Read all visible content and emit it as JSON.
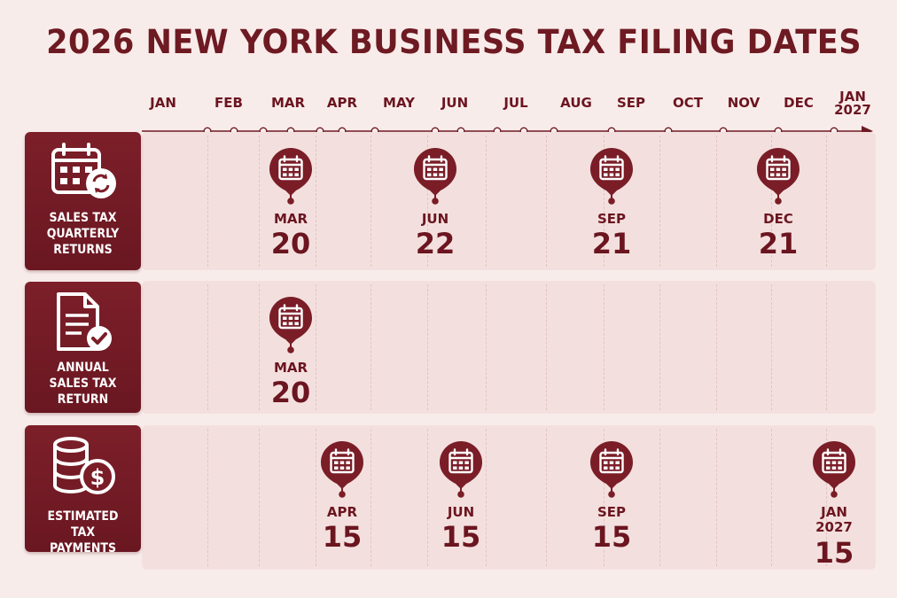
{
  "title": "2026 NEW YORK BUSINESS TAX FILING DATES",
  "colors": {
    "brand": "#6e1a22",
    "background": "#f8ecea",
    "row": "#f3e0de"
  },
  "timeline": {
    "months": [
      "JAN",
      "FEB",
      "MAR",
      "APR",
      "MAY",
      "JUN",
      "JUL",
      "AUG",
      "SEP",
      "OCT",
      "NOV",
      "DEC",
      "JAN\n2027"
    ]
  },
  "rows": [
    {
      "label": "SALES TAX\nQUARTERLY\nRETURNS",
      "icon": "calendar-refresh-icon",
      "dates": [
        {
          "month": "MAR",
          "day": "20"
        },
        {
          "month": "JUN",
          "day": "22"
        },
        {
          "month": "SEP",
          "day": "21"
        },
        {
          "month": "DEC",
          "day": "21"
        }
      ]
    },
    {
      "label": "ANNUAL\nSALES TAX\nRETURN",
      "icon": "document-check-icon",
      "dates": [
        {
          "month": "MAR",
          "day": "20"
        }
      ]
    },
    {
      "label": "ESTIMATED TAX\nPAYMENTS",
      "icon": "coins-dollar-icon",
      "dates": [
        {
          "month": "APR",
          "day": "15"
        },
        {
          "month": "JUN",
          "day": "15"
        },
        {
          "month": "SEP",
          "day": "15"
        },
        {
          "month": "JAN\n2027",
          "day": "15"
        }
      ]
    }
  ]
}
